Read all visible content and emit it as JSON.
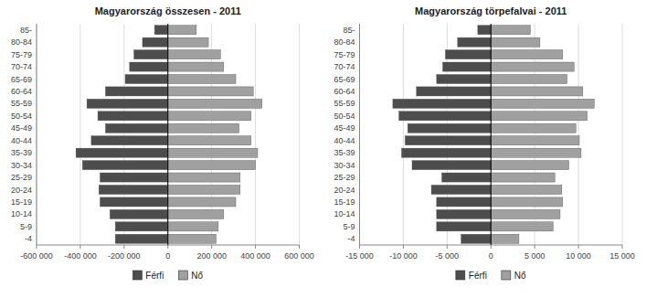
{
  "chart_data": [
    {
      "type": "bar",
      "orientation": "horizontal",
      "title": "Magyarország összesen - 2011",
      "categories": [
        "-4",
        "5-9",
        "10-14",
        "15-19",
        "20-24",
        "25-29",
        "30-34",
        "35-39",
        "40-44",
        "45-49",
        "50-54",
        "55-59",
        "60-64",
        "65-69",
        "70-74",
        "75-79",
        "80-84",
        "85-"
      ],
      "series": [
        {
          "name": "Férfi",
          "color": "#4d4d4d",
          "values": [
            -240000,
            -240000,
            -265000,
            -310000,
            -315000,
            -310000,
            -390000,
            -420000,
            -350000,
            -285000,
            -320000,
            -370000,
            -285000,
            -195000,
            -175000,
            -155000,
            -116000,
            -61000
          ]
        },
        {
          "name": "Nő",
          "color": "#a0a0a0",
          "values": [
            220000,
            230000,
            255000,
            310000,
            330000,
            330000,
            400000,
            410000,
            380000,
            325000,
            380000,
            430000,
            390000,
            310000,
            255000,
            240000,
            185000,
            130000
          ]
        }
      ],
      "xlim": [
        -600000,
        600000
      ],
      "xticks": [
        {
          "value": -600000,
          "label": "-600 000"
        },
        {
          "value": -400000,
          "label": "-400 000"
        },
        {
          "value": -200000,
          "label": "-200 000"
        },
        0,
        {
          "value": 200000,
          "label": "200 000"
        },
        {
          "value": 400000,
          "label": "400 000"
        },
        {
          "value": 600000,
          "label": "600 000"
        }
      ],
      "grid": true,
      "legend": "bottom"
    },
    {
      "type": "bar",
      "orientation": "horizontal",
      "title": "Magyarország törpefalvai - 2011",
      "categories": [
        "-4",
        "5-9",
        "10-14",
        "15-19",
        "20-24",
        "25-29",
        "30-34",
        "35-39",
        "40-44",
        "45-49",
        "50-54",
        "55-59",
        "60-64",
        "65-69",
        "70-74",
        "75-79",
        "80-84",
        "85-"
      ],
      "series": [
        {
          "name": "Férfi",
          "color": "#4d4d4d",
          "values": [
            -3400,
            -6200,
            -6200,
            -6200,
            -6800,
            -5600,
            -9000,
            -10200,
            -9800,
            -9500,
            -10500,
            -11200,
            -8500,
            -6200,
            -5500,
            -5200,
            -3800,
            -1500
          ]
        },
        {
          "name": "Nő",
          "color": "#a0a0a0",
          "values": [
            3200,
            7100,
            7900,
            8200,
            8100,
            7300,
            8900,
            10300,
            10100,
            9700,
            11000,
            11800,
            10500,
            8700,
            9500,
            8200,
            5600,
            4500
          ]
        }
      ],
      "xlim": [
        -15000,
        15000
      ],
      "xticks": [
        {
          "value": -15000,
          "label": "-15 000"
        },
        {
          "value": -10000,
          "label": "-10 000"
        },
        {
          "value": -5000,
          "label": "-5 000"
        },
        0,
        {
          "value": 5000,
          "label": "5 000"
        },
        {
          "value": 10000,
          "label": "10 000"
        },
        {
          "value": 15000,
          "label": "15 000"
        }
      ],
      "grid": true,
      "legend": "bottom"
    }
  ]
}
